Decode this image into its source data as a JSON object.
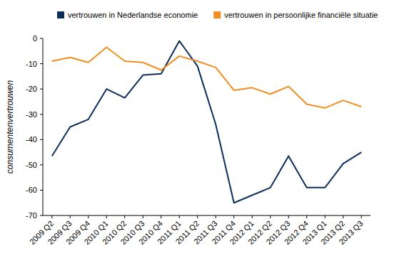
{
  "chart_data": {
    "type": "line",
    "y_label": "consumentenvertrouwen",
    "categories": [
      "2009 Q2",
      "2009 Q3",
      "2009 Q4",
      "2010 Q1",
      "2010 Q2",
      "2010 Q3",
      "2010 Q4",
      "2011 Q1",
      "2011 Q2",
      "2011 Q3",
      "2011 Q4",
      "2012 Q1",
      "2012 Q2",
      "2012 Q3",
      "2012 Q4",
      "2013 Q1",
      "2013 Q2",
      "2013 Q3"
    ],
    "series": [
      {
        "name": "vertrouwen in Nederlandse economie",
        "color": "#0d2d5a",
        "values": [
          -46.5,
          -35,
          -32,
          -20,
          -23.5,
          -14.5,
          -14,
          -1,
          -11,
          -34,
          -65,
          -62,
          -59,
          -46.5,
          -59,
          -59,
          -49.5,
          -45
        ]
      },
      {
        "name": "vertrouwen in persoonlijke financiële situatie",
        "color": "#f28e1f",
        "values": [
          -9,
          -7.5,
          -9.5,
          -3.5,
          -9,
          -9.5,
          -12.5,
          -7,
          -9,
          -11.5,
          -20.5,
          -19.5,
          -22,
          -19,
          -26,
          -27.5,
          -24.5,
          -27
        ]
      }
    ],
    "ylim": [
      -70,
      0
    ],
    "yticks": [
      0,
      -10,
      -20,
      -30,
      -40,
      -50,
      -60,
      -70
    ],
    "grid": false,
    "legend": "top"
  }
}
